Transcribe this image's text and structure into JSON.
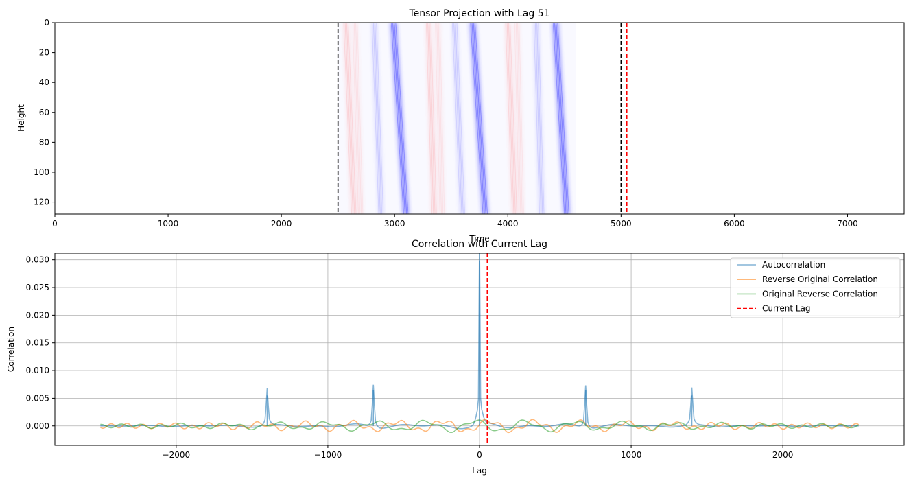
{
  "chart_data": [
    {
      "type": "heatmap",
      "title": "Tensor Projection with Lag 51",
      "xlabel": "Time",
      "ylabel": "Height",
      "xlim": [
        0,
        7500
      ],
      "ylim": [
        128,
        0
      ],
      "xticks": [
        0,
        1000,
        2000,
        3000,
        4000,
        5000,
        6000,
        7000
      ],
      "yticks": [
        0,
        20,
        40,
        60,
        80,
        100,
        120
      ],
      "colormap": "bwr",
      "content_extent": [
        2500,
        4600
      ],
      "vlines": [
        {
          "x": 2500,
          "color": "#000000",
          "style": "dashed"
        },
        {
          "x": 5000,
          "color": "#000000",
          "style": "dashed"
        },
        {
          "x": 5051,
          "color": "#ff0000",
          "style": "dashed"
        }
      ],
      "stripes": [
        {
          "x_top": 2570,
          "x_bottom": 2640,
          "sign": "positive",
          "intensity": 0.25
        },
        {
          "x_top": 2650,
          "x_bottom": 2700,
          "sign": "positive",
          "intensity": 0.15
        },
        {
          "x_top": 2820,
          "x_bottom": 2880,
          "sign": "negative",
          "intensity": 0.25
        },
        {
          "x_top": 2990,
          "x_bottom": 3100,
          "sign": "negative",
          "intensity": 0.7
        },
        {
          "x_top": 3300,
          "x_bottom": 3350,
          "sign": "positive",
          "intensity": 0.25
        },
        {
          "x_top": 3380,
          "x_bottom": 3420,
          "sign": "positive",
          "intensity": 0.15
        },
        {
          "x_top": 3530,
          "x_bottom": 3600,
          "sign": "negative",
          "intensity": 0.25
        },
        {
          "x_top": 3690,
          "x_bottom": 3800,
          "sign": "negative",
          "intensity": 0.7
        },
        {
          "x_top": 4000,
          "x_bottom": 4060,
          "sign": "positive",
          "intensity": 0.25
        },
        {
          "x_top": 4080,
          "x_bottom": 4120,
          "sign": "positive",
          "intensity": 0.15
        },
        {
          "x_top": 4250,
          "x_bottom": 4300,
          "sign": "negative",
          "intensity": 0.25
        },
        {
          "x_top": 4420,
          "x_bottom": 4520,
          "sign": "negative",
          "intensity": 0.7
        }
      ]
    },
    {
      "type": "line",
      "title": "Correlation with Current Lag",
      "xlabel": "Lag",
      "ylabel": "Correlation",
      "xlim": [
        -2800,
        2800
      ],
      "ylim": [
        -0.0035,
        0.0312
      ],
      "xticks": [
        -2000,
        -1000,
        0,
        1000,
        2000
      ],
      "xtick_labels": [
        "−2000",
        "−1000",
        "0",
        "1000",
        "2000"
      ],
      "yticks": [
        0.0,
        0.005,
        0.01,
        0.015,
        0.02,
        0.025,
        0.03
      ],
      "ytick_labels": [
        "0.000",
        "0.005",
        "0.010",
        "0.015",
        "0.020",
        "0.025",
        "0.030"
      ],
      "grid": true,
      "legend": "top-right",
      "x_range": [
        -2500,
        2500
      ],
      "series": [
        {
          "name": "Autocorrelation",
          "color": "#1f77b4",
          "peaks": [
            {
              "x": -1400,
              "y": 0.0055
            },
            {
              "x": -700,
              "y": 0.0065
            },
            {
              "x": 0,
              "y": 0.0298
            },
            {
              "x": 700,
              "y": 0.0065
            },
            {
              "x": 1400,
              "y": 0.0055
            }
          ]
        },
        {
          "name": "Reverse Original Correlation",
          "color": "#ff7f0e"
        },
        {
          "name": "Original Reverse Correlation",
          "color": "#2ca02c"
        },
        {
          "name": "Current Lag",
          "color": "#ff0000",
          "style": "dashed",
          "x": 51
        }
      ]
    }
  ]
}
